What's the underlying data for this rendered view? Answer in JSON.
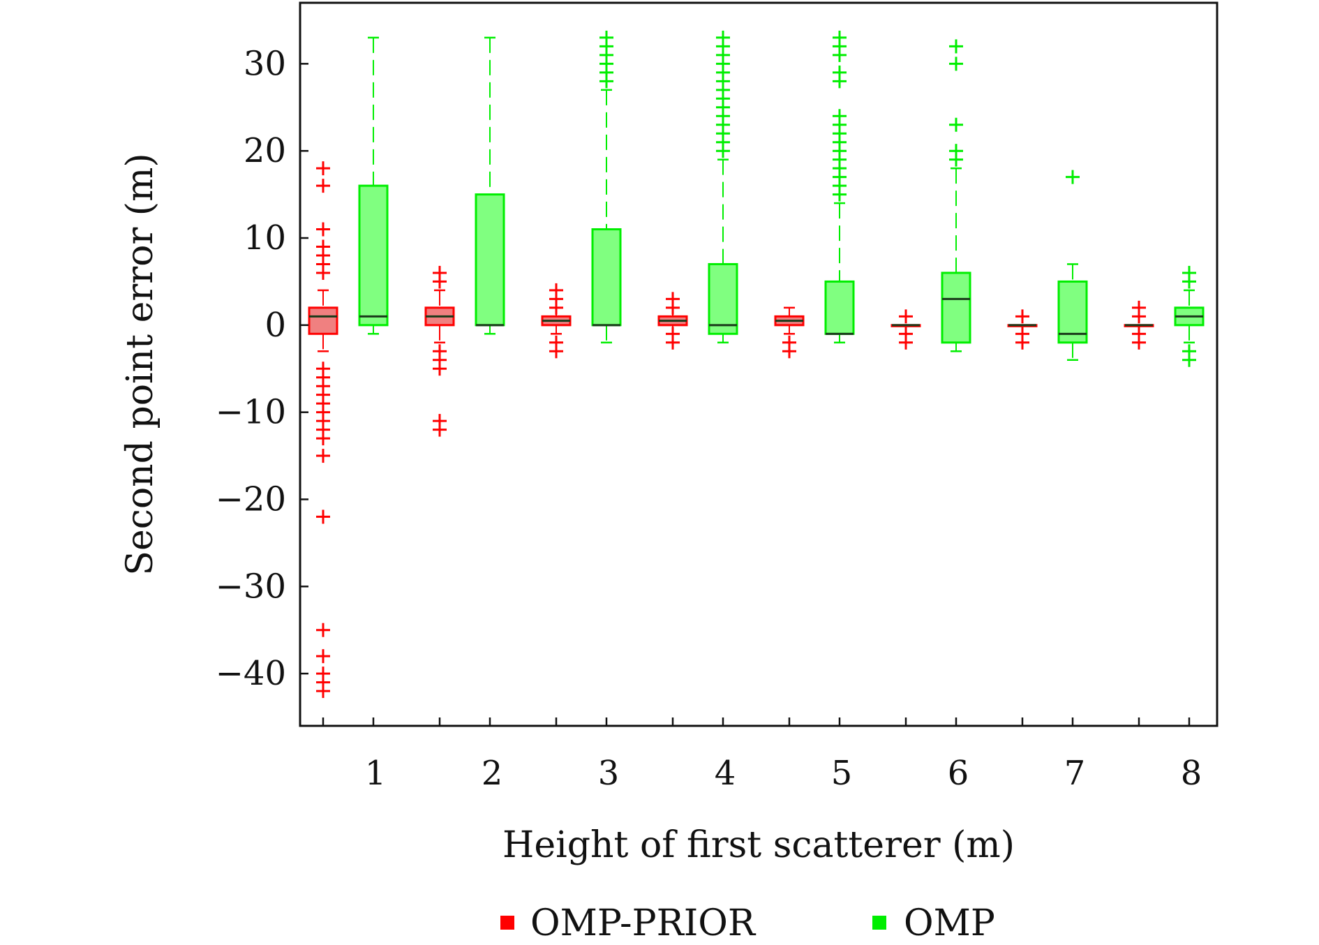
{
  "chart_data": {
    "type": "boxplot",
    "xlabel": "Height of first scatterer (m)",
    "ylabel": "Second point error (m)",
    "ylim": [
      -46,
      37
    ],
    "yticks": [
      30,
      20,
      10,
      0,
      -10,
      -20,
      -30,
      -40
    ],
    "ytick_labels": [
      "30",
      "20",
      "10",
      "0",
      "−10",
      "−20",
      "−30",
      "−40"
    ],
    "categories": [
      "1",
      "2",
      "3",
      "4",
      "5",
      "6",
      "7",
      "8"
    ],
    "legend": {
      "position": "bottom"
    },
    "series": [
      {
        "name": "OMP-PRIOR",
        "color": "#ff0000",
        "fill": "#f08080",
        "boxes": [
          {
            "category": "1",
            "q1": -1,
            "median": 1,
            "q3": 2,
            "whisker_low": -3,
            "whisker_high": 4,
            "outliers": [
              18,
              16,
              11,
              9,
              8,
              7,
              6,
              -5,
              -6,
              -7,
              -8,
              -9,
              -10,
              -11,
              -12,
              -13,
              -15,
              -22,
              -35,
              -38,
              -40,
              -41,
              -42
            ]
          },
          {
            "category": "2",
            "q1": 0,
            "median": 1,
            "q3": 2,
            "whisker_low": -2,
            "whisker_high": 4,
            "outliers": [
              6,
              5,
              -3,
              -4,
              -5,
              -11,
              -12
            ]
          },
          {
            "category": "3",
            "q1": 0,
            "median": 0.5,
            "q3": 1,
            "whisker_low": -1,
            "whisker_high": 2,
            "outliers": [
              4,
              3,
              2,
              -2,
              -3
            ]
          },
          {
            "category": "4",
            "q1": 0,
            "median": 0.5,
            "q3": 1,
            "whisker_low": -1,
            "whisker_high": 2,
            "outliers": [
              3,
              2,
              -1,
              -2
            ]
          },
          {
            "category": "5",
            "q1": 0,
            "median": 0.5,
            "q3": 1,
            "whisker_low": -1,
            "whisker_high": 2,
            "outliers": [
              -2,
              -3
            ]
          },
          {
            "category": "6",
            "q1": 0,
            "median": 0,
            "q3": 0,
            "whisker_low": 0,
            "whisker_high": 0,
            "outliers": [
              1,
              -1,
              -2
            ]
          },
          {
            "category": "7",
            "q1": 0,
            "median": 0,
            "q3": 0,
            "whisker_low": 0,
            "whisker_high": 0,
            "outliers": [
              1,
              -1,
              -2
            ]
          },
          {
            "category": "8",
            "q1": 0,
            "median": 0,
            "q3": 0,
            "whisker_low": 0,
            "whisker_high": 0,
            "outliers": [
              2,
              1,
              -1,
              -2
            ]
          }
        ]
      },
      {
        "name": "OMP",
        "color": "#00ee00",
        "fill": "#80ff80",
        "boxes": [
          {
            "category": "1",
            "q1": 0,
            "median": 1,
            "q3": 16,
            "whisker_low": -1,
            "whisker_high": 33,
            "outliers": []
          },
          {
            "category": "2",
            "q1": 0,
            "median": 0,
            "q3": 15,
            "whisker_low": -1,
            "whisker_high": 33,
            "outliers": []
          },
          {
            "category": "3",
            "q1": 0,
            "median": 0,
            "q3": 11,
            "whisker_low": -2,
            "whisker_high": 27,
            "outliers": [
              33,
              32,
              31,
              30,
              29,
              28
            ]
          },
          {
            "category": "4",
            "q1": -1,
            "median": 0,
            "q3": 7,
            "whisker_low": -2,
            "whisker_high": 19,
            "outliers": [
              33,
              32,
              31,
              30,
              29,
              28,
              27,
              26,
              25,
              24,
              23,
              22,
              21,
              20
            ]
          },
          {
            "category": "5",
            "q1": -1,
            "median": -1,
            "q3": 5,
            "whisker_low": -2,
            "whisker_high": 14,
            "outliers": [
              33,
              32,
              31,
              29,
              28,
              24,
              23,
              22,
              21,
              20,
              19,
              18,
              17,
              16,
              15
            ]
          },
          {
            "category": "6",
            "q1": -2,
            "median": 3,
            "q3": 6,
            "whisker_low": -3,
            "whisker_high": 18,
            "outliers": [
              32,
              30,
              23,
              20,
              19
            ]
          },
          {
            "category": "7",
            "q1": -2,
            "median": -1,
            "q3": 5,
            "whisker_low": -4,
            "whisker_high": 7,
            "outliers": [
              17
            ]
          },
          {
            "category": "8",
            "q1": 0,
            "median": 1,
            "q3": 2,
            "whisker_low": -2,
            "whisker_high": 4,
            "outliers": [
              6,
              5,
              -3,
              -4
            ]
          }
        ]
      }
    ]
  }
}
